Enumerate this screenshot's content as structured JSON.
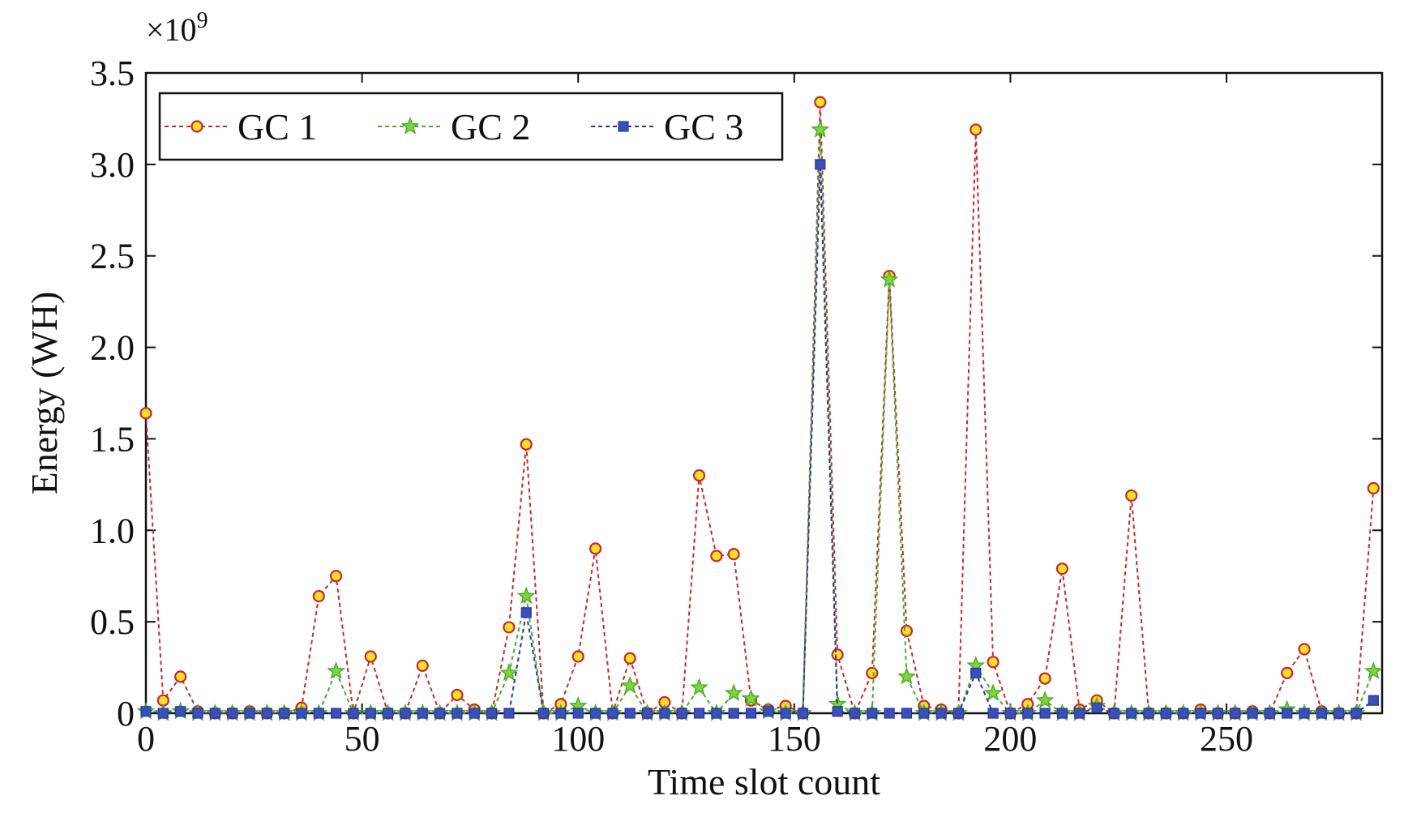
{
  "chart_data": {
    "type": "line",
    "xlabel": "Time slot count",
    "ylabel": "Energy (WH)",
    "y_exponent_base": "×10",
    "y_exponent_power": "9",
    "xlim": [
      0,
      286
    ],
    "ylim": [
      0,
      3.5
    ],
    "xticks": [
      0,
      50,
      100,
      150,
      200,
      250
    ],
    "xtick_labels": [
      "0",
      "50",
      "100",
      "150",
      "200",
      "250"
    ],
    "yticks": [
      0,
      0.5,
      1.0,
      1.5,
      2.0,
      2.5,
      3.0,
      3.5
    ],
    "ytick_labels": [
      "0",
      "0.5",
      "1.0",
      "1.5",
      "2.0",
      "2.5",
      "3.0",
      "3.5"
    ],
    "grid": false,
    "legend_position": "top-left",
    "x": [
      0,
      4,
      8,
      12,
      16,
      20,
      24,
      28,
      32,
      36,
      40,
      44,
      48,
      52,
      56,
      60,
      64,
      68,
      72,
      76,
      80,
      84,
      88,
      92,
      96,
      100,
      104,
      108,
      112,
      116,
      120,
      124,
      128,
      132,
      136,
      140,
      144,
      148,
      152,
      156,
      160,
      164,
      168,
      172,
      176,
      180,
      184,
      188,
      192,
      196,
      200,
      204,
      208,
      212,
      216,
      220,
      224,
      228,
      232,
      236,
      240,
      244,
      248,
      252,
      256,
      260,
      264,
      268,
      272,
      276,
      280,
      284
    ],
    "series": [
      {
        "name": "GC 1",
        "color": "#c8282a",
        "marker": "circle",
        "marker_fill": "#f5e02a",
        "values": [
          1.64,
          0.07,
          0.2,
          0.01,
          0.0,
          0.0,
          0.01,
          0.0,
          0.0,
          0.03,
          0.64,
          0.75,
          0.0,
          0.31,
          0.0,
          0.0,
          0.26,
          0.0,
          0.1,
          0.02,
          0.0,
          0.47,
          1.47,
          0.0,
          0.05,
          0.31,
          0.9,
          0.0,
          0.3,
          0.0,
          0.06,
          0.0,
          1.3,
          0.86,
          0.87,
          0.07,
          0.02,
          0.04,
          0.0,
          3.34,
          0.32,
          0.0,
          0.22,
          2.39,
          0.45,
          0.04,
          0.02,
          0.0,
          3.19,
          0.28,
          0.0,
          0.05,
          0.19,
          0.79,
          0.02,
          0.07,
          0.0,
          1.19,
          0.0,
          0.0,
          0.0,
          0.02,
          0.0,
          0.0,
          0.01,
          0.0,
          0.22,
          0.35,
          0.01,
          0.0,
          0.0,
          1.23
        ]
      },
      {
        "name": "GC 2",
        "color": "#4aab2c",
        "marker": "star",
        "marker_fill": "#7ed43a",
        "values": [
          0.01,
          0.0,
          0.01,
          0.0,
          0.0,
          0.0,
          0.0,
          0.0,
          0.0,
          0.0,
          0.0,
          0.23,
          0.0,
          0.0,
          0.0,
          0.0,
          0.0,
          0.0,
          0.0,
          0.0,
          0.0,
          0.22,
          0.64,
          0.0,
          0.0,
          0.04,
          0.0,
          0.0,
          0.15,
          0.0,
          0.0,
          0.0,
          0.14,
          0.0,
          0.11,
          0.08,
          0.01,
          0.0,
          0.0,
          3.19,
          0.05,
          0.0,
          0.0,
          2.37,
          0.2,
          0.0,
          0.0,
          0.0,
          0.26,
          0.11,
          0.0,
          0.0,
          0.07,
          0.0,
          0.0,
          0.04,
          0.0,
          0.0,
          0.0,
          0.0,
          0.0,
          0.0,
          0.0,
          0.0,
          0.0,
          0.0,
          0.02,
          0.0,
          0.0,
          0.0,
          0.0,
          0.23
        ]
      },
      {
        "name": "GC 3",
        "color": "#26389a",
        "marker": "square",
        "marker_fill": "#3a4fb8",
        "values": [
          0.01,
          0.0,
          0.01,
          0.0,
          0.0,
          0.0,
          0.0,
          0.0,
          0.0,
          0.0,
          0.0,
          0.0,
          0.0,
          0.0,
          0.0,
          0.0,
          0.0,
          0.0,
          0.0,
          0.0,
          0.0,
          0.0,
          0.55,
          0.0,
          0.0,
          0.0,
          0.0,
          0.0,
          0.0,
          0.0,
          0.0,
          0.0,
          0.0,
          0.0,
          0.0,
          0.0,
          0.01,
          0.0,
          0.0,
          3.0,
          0.01,
          0.0,
          0.0,
          0.0,
          0.0,
          0.0,
          0.0,
          0.0,
          0.22,
          0.0,
          0.0,
          0.0,
          0.0,
          0.0,
          0.0,
          0.03,
          0.0,
          0.0,
          0.0,
          0.0,
          0.0,
          0.0,
          0.0,
          0.0,
          0.0,
          0.0,
          0.0,
          0.0,
          0.0,
          0.0,
          0.0,
          0.07
        ]
      }
    ]
  }
}
